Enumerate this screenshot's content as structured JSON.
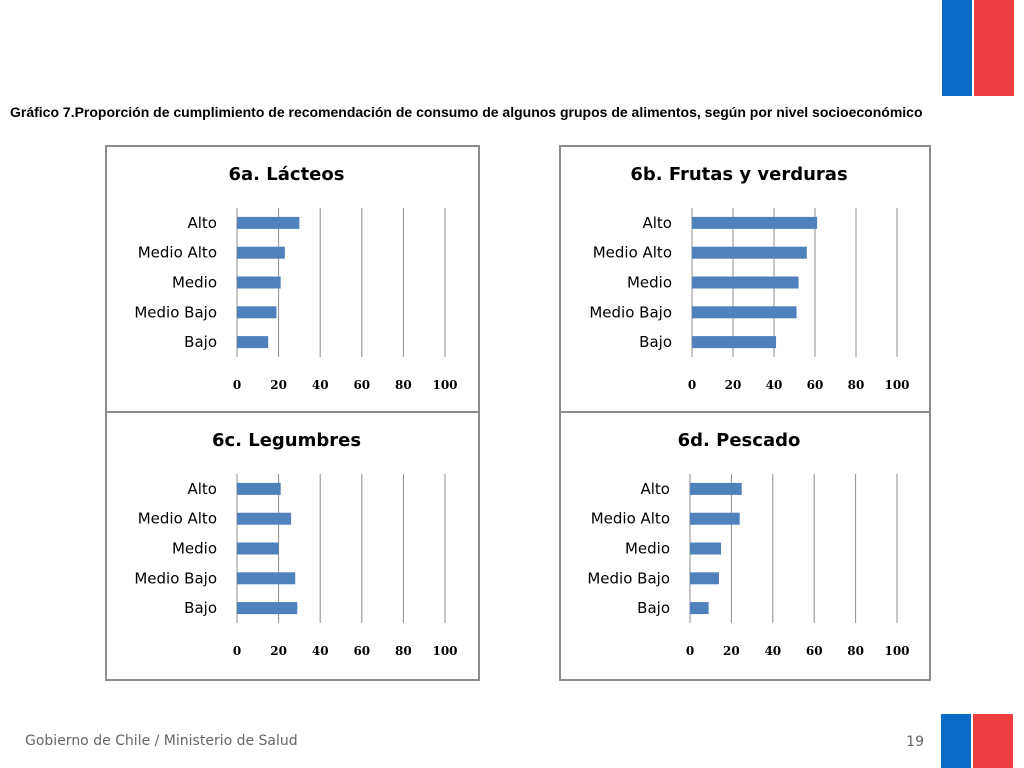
{
  "page": {
    "title": "Gráfico 7.Proporción de cumplimiento de recomendación de consumo de algunos grupos de alimentos, según por nivel socioeconómico",
    "footer": "Gobierno de Chile / Ministerio de Salud",
    "page_number": "19"
  },
  "colors": {
    "bar": "#4f81bd",
    "flag_blue": "#0b6bc4",
    "flag_red": "#ef3e42"
  },
  "chart_data": [
    {
      "type": "bar",
      "orientation": "horizontal",
      "title": "6a. Lácteos",
      "categories": [
        "Alto",
        "Medio Alto",
        "Medio",
        "Medio Bajo",
        "Bajo"
      ],
      "values": [
        30,
        23,
        21,
        19,
        15
      ],
      "xlim": [
        0,
        100
      ],
      "ticks": [
        "0",
        "20",
        "40",
        "60",
        "80",
        "100"
      ],
      "grid": true
    },
    {
      "type": "bar",
      "orientation": "horizontal",
      "title": "6b. Frutas y verduras",
      "categories": [
        "Alto",
        "Medio Alto",
        "Medio",
        "Medio Bajo",
        "Bajo"
      ],
      "values": [
        61,
        56,
        52,
        51,
        41
      ],
      "xlim": [
        0,
        100
      ],
      "ticks": [
        "0",
        "20",
        "40",
        "60",
        "80",
        "100"
      ],
      "grid": true
    },
    {
      "type": "bar",
      "orientation": "horizontal",
      "title": "6c. Legumbres",
      "categories": [
        "Alto",
        "Medio Alto",
        "Medio",
        "Medio Bajo",
        "Bajo"
      ],
      "values": [
        21,
        26,
        20,
        28,
        29
      ],
      "xlim": [
        0,
        100
      ],
      "ticks": [
        "0",
        "20",
        "40",
        "60",
        "80",
        "100"
      ],
      "grid": true
    },
    {
      "type": "bar",
      "orientation": "horizontal",
      "title": "6d. Pescado",
      "categories": [
        "Alto",
        "Medio Alto",
        "Medio",
        "Medio Bajo",
        "Bajo"
      ],
      "values": [
        25,
        24,
        15,
        14,
        9
      ],
      "xlim": [
        0,
        100
      ],
      "ticks": [
        "0",
        "20",
        "40",
        "60",
        "80",
        "100"
      ],
      "grid": true
    }
  ]
}
